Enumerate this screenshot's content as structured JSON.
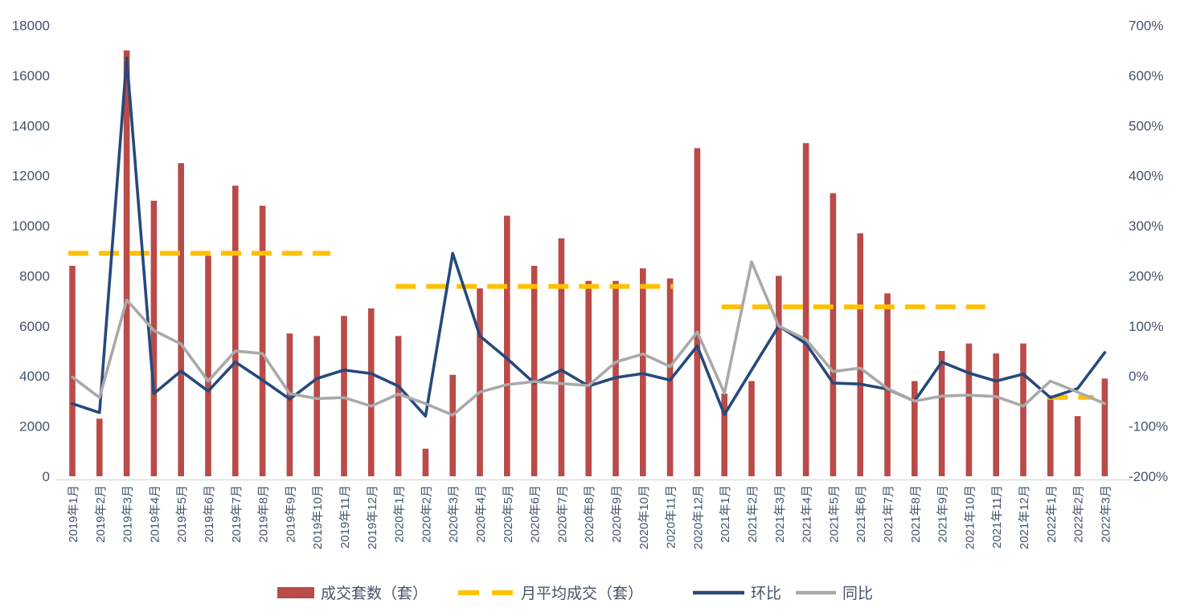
{
  "chart_data": {
    "type": "combo_bar_line",
    "title": "",
    "xlabel": "",
    "ylabel": "",
    "grid": false,
    "legend_position": "bottom",
    "categories": [
      "2019年1月",
      "2019年2月",
      "2019年3月",
      "2019年4月",
      "2019年5月",
      "2019年6月",
      "2019年7月",
      "2019年8月",
      "2019年9月",
      "2019年10月",
      "2019年11月",
      "2019年12月",
      "2020年1月",
      "2020年2月",
      "2020年3月",
      "2020年4月",
      "2020年5月",
      "2020年6月",
      "2020年7月",
      "2020年8月",
      "2020年9月",
      "2020年10月",
      "2020年11月",
      "2020年12月",
      "2021年1月",
      "2021年2月",
      "2021年3月",
      "2021年4月",
      "2021年5月",
      "2021年6月",
      "2021年7月",
      "2021年8月",
      "2021年9月",
      "2021年10月",
      "2021年11月",
      "2021年12月",
      "2022年1月",
      "2022年2月",
      "2022年3月"
    ],
    "left_axis": {
      "min": 0,
      "max": 18000,
      "step": 2000,
      "ticks": [
        "18000",
        "16000",
        "14000",
        "12000",
        "10000",
        "8000",
        "6000",
        "4000",
        "2000",
        "0"
      ]
    },
    "right_axis": {
      "min": -200,
      "max": 700,
      "step": 100,
      "ticks": [
        "700%",
        "600%",
        "500%",
        "400%",
        "300%",
        "200%",
        "100%",
        "0%",
        "-100%",
        "-200%"
      ]
    },
    "series": [
      {
        "name": "成交套数（套）",
        "type": "bar",
        "axis": "left",
        "color": "#B94B48",
        "values": [
          8400,
          2300,
          17000,
          11000,
          12500,
          8800,
          11600,
          10800,
          5700,
          5600,
          6400,
          6700,
          5600,
          1100,
          4050,
          7500,
          10400,
          8400,
          9500,
          7800,
          7800,
          8300,
          7900,
          13100,
          3300,
          3800,
          8000,
          13300,
          11300,
          9700,
          7300,
          3800,
          5000,
          5300,
          4900,
          5300,
          3200,
          2400,
          3900
        ]
      },
      {
        "name": "月平均成交（套）",
        "type": "dashed_average_segments",
        "axis": "left",
        "color": "#FFC000",
        "segments": [
          {
            "year": "2019",
            "value": 8900,
            "start_index": -0.15,
            "end_index": 9.5
          },
          {
            "year": "2020",
            "value": 7580,
            "start_index": 11.9,
            "end_index": 22.1
          },
          {
            "year": "2021",
            "value": 6760,
            "start_index": 23.9,
            "end_index": 33.6
          },
          {
            "year": "2022",
            "value": 3150,
            "start_index": 35.9,
            "end_index": 37.6
          }
        ]
      },
      {
        "name": "环比",
        "type": "line",
        "axis": "right",
        "color": "#27497B",
        "values_pct": [
          -55,
          -73,
          635,
          -35,
          10,
          -30,
          28,
          -8,
          -46,
          -5,
          12,
          5,
          -20,
          -80,
          245,
          80,
          35,
          -14,
          12,
          -20,
          -3,
          5,
          -8,
          60,
          -77,
          12,
          100,
          65,
          -14,
          -16,
          -26,
          -50,
          28,
          6,
          -10,
          4,
          -43,
          -25,
          47
        ]
      },
      {
        "name": "同比",
        "type": "line",
        "axis": "right",
        "color": "#A9A9A9",
        "values_pct": [
          -2,
          -43,
          152,
          91,
          64,
          -10,
          50,
          45,
          -35,
          -45,
          -43,
          -60,
          -36,
          -55,
          -78,
          -32,
          -17,
          -11,
          -15,
          -19,
          28,
          44,
          19,
          88,
          -34,
          228,
          100,
          73,
          9,
          16,
          -25,
          -50,
          -40,
          -38,
          -41,
          -60,
          -10,
          -32,
          -55
        ]
      }
    ],
    "legend": [
      {
        "label": "成交套数（套）",
        "swatch": "bar",
        "color": "#B94B48"
      },
      {
        "label": "月平均成交（套）",
        "swatch": "dash",
        "color": "#FFC000"
      },
      {
        "label": "环比",
        "swatch": "line",
        "color": "#27497B"
      },
      {
        "label": "同比",
        "swatch": "line",
        "color": "#A9A9A9"
      }
    ]
  },
  "colors": {
    "background": "#FFFFFF",
    "axis_text": "#44546A",
    "axis_line": "#D9D9D9",
    "bar": "#B94B48",
    "avg_dash": "#FFC000",
    "mom_line": "#27497B",
    "yoy_line": "#A9A9A9"
  }
}
